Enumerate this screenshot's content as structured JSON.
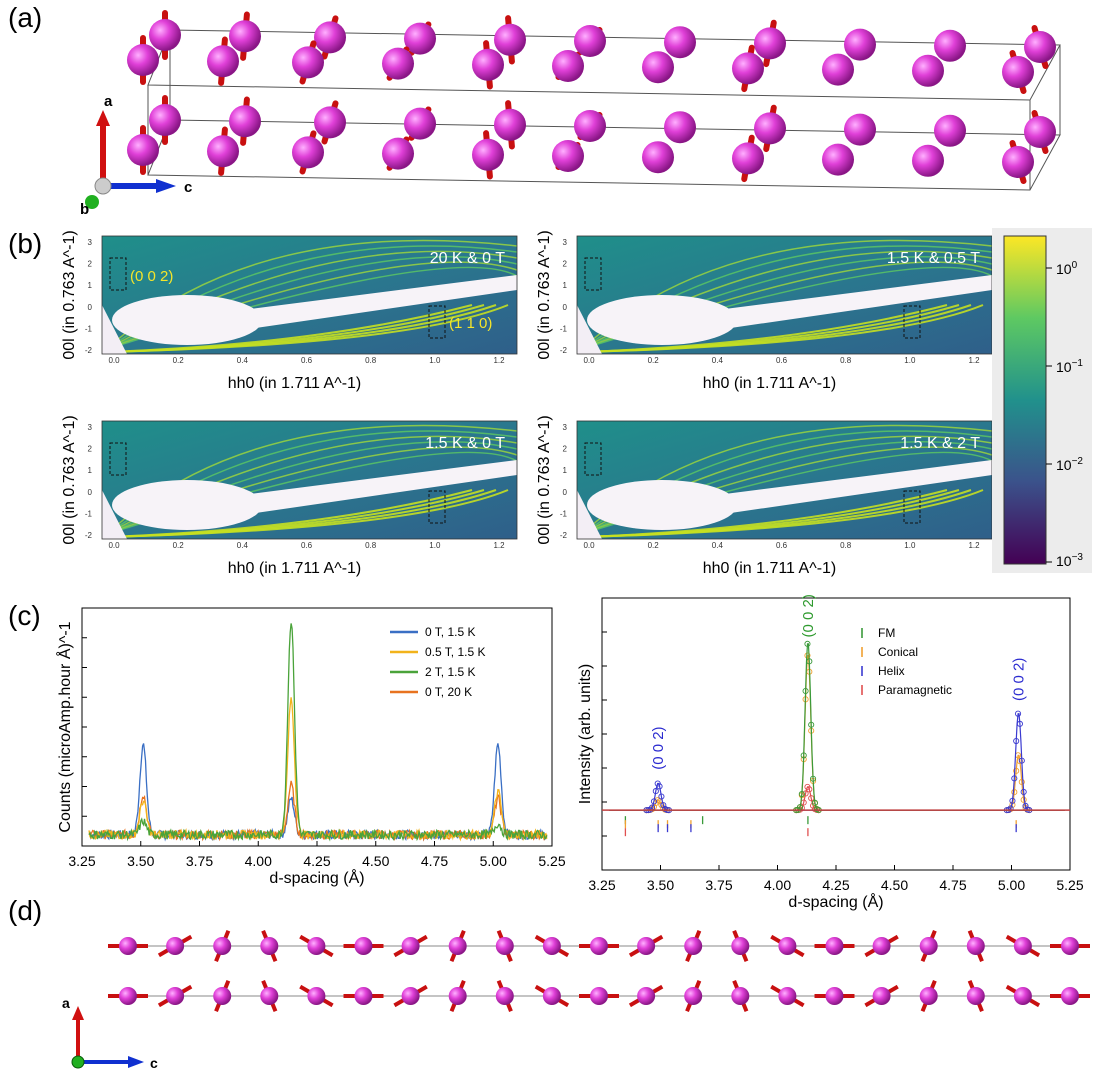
{
  "figure": {
    "panels": {
      "a": "(a)",
      "b": "(b)",
      "c": "(c)",
      "d": "(d)"
    },
    "axes_triad_a": {
      "a": "a",
      "b": "b",
      "c": "c"
    },
    "axes_triad_d": {
      "a": "a",
      "c": "c"
    }
  },
  "maps": {
    "ylabel": "00l (in 0.763 A^-1)",
    "xlabel": "hh0 (in 1.711 A^-1)",
    "x_ticks": [
      "0.0",
      "0.2",
      "0.4",
      "0.6",
      "0.8",
      "1.0",
      "1.2"
    ],
    "y_ticks": [
      "3",
      "2",
      "1",
      "0",
      "-1",
      "-2"
    ],
    "items": [
      {
        "condition": "20 K & 0 T",
        "peak_labels": [
          "(0 0 2)",
          "(1 1 0)"
        ]
      },
      {
        "condition": "1.5 K & 0.5 T",
        "peak_labels": []
      },
      {
        "condition": "1.5 K & 0 T",
        "peak_labels": []
      },
      {
        "condition": "1.5 K & 2 T",
        "peak_labels": []
      }
    ],
    "colorbar": {
      "labels": [
        "10^0",
        "10^-1",
        "10^-2",
        "10^-3"
      ],
      "colors": [
        "#440154",
        "#3b528b",
        "#21918c",
        "#5ec962",
        "#fde725"
      ],
      "scale": "log"
    }
  },
  "chart_data": [
    {
      "type": "line",
      "xlabel": "d-spacing (Å)",
      "ylabel": "Counts (microAmp.hour Å)^-1",
      "xlim": [
        3.25,
        5.25
      ],
      "x_ticks": [
        "3.25",
        "3.50",
        "3.75",
        "4.00",
        "4.25",
        "4.50",
        "4.75",
        "5.00",
        "5.25"
      ],
      "legend_position": "top-right",
      "series": [
        {
          "name": "0 T, 1.5 K",
          "color": "#3a6fc4",
          "peaks": [
            {
              "x": 3.51,
              "y": 0.4
            },
            {
              "x": 4.14,
              "y": 0.16
            },
            {
              "x": 5.02,
              "y": 0.4
            }
          ]
        },
        {
          "name": "0.5 T, 1.5 K",
          "color": "#f2b31b",
          "peaks": [
            {
              "x": 3.51,
              "y": 0.15
            },
            {
              "x": 4.14,
              "y": 0.6
            },
            {
              "x": 5.02,
              "y": 0.19
            }
          ]
        },
        {
          "name": "2 T, 1.5 K",
          "color": "#4aa33a",
          "peaks": [
            {
              "x": 3.51,
              "y": 0.06
            },
            {
              "x": 4.14,
              "y": 0.95
            },
            {
              "x": 5.02,
              "y": 0.05
            }
          ]
        },
        {
          "name": "0 T, 20 K",
          "color": "#e8731f",
          "peaks": [
            {
              "x": 3.51,
              "y": 0.18
            },
            {
              "x": 4.14,
              "y": 0.22
            },
            {
              "x": 5.02,
              "y": 0.16
            }
          ]
        }
      ],
      "baseline": 0.05
    },
    {
      "type": "line",
      "xlabel": "d-spacing (Å)",
      "ylabel": "Intensity (arb. units)",
      "xlim": [
        3.25,
        5.25
      ],
      "x_ticks": [
        "3.25",
        "3.50",
        "3.75",
        "4.00",
        "4.25",
        "4.50",
        "4.75",
        "5.00",
        "5.25"
      ],
      "legend_position": "top-right",
      "annotations": [
        {
          "text": "(0 0 2)",
          "x": 3.49,
          "color": "#2b2bd0"
        },
        {
          "text": "(0 0 2)",
          "x": 4.13,
          "color": "#2e9a2e"
        },
        {
          "text": "(0 0 2)",
          "x": 5.03,
          "color": "#2b2bd0"
        }
      ],
      "series": [
        {
          "name": "FM",
          "color": "#3a9a3a",
          "peaks": [
            {
              "x": 4.13,
              "y": 1.0
            }
          ],
          "ticks": [
            3.35,
            3.68,
            4.13
          ]
        },
        {
          "name": "Conical",
          "color": "#f0a030",
          "peaks": [
            {
              "x": 3.49,
              "y": 0.06
            },
            {
              "x": 4.13,
              "y": 0.93
            },
            {
              "x": 5.03,
              "y": 0.33
            }
          ],
          "ticks": [
            3.35,
            3.49,
            3.53,
            3.63,
            5.02
          ]
        },
        {
          "name": "Helix",
          "color": "#3a3ad0",
          "peaks": [
            {
              "x": 3.49,
              "y": 0.16
            },
            {
              "x": 5.03,
              "y": 0.58
            }
          ],
          "ticks": [
            3.49,
            3.53,
            3.63,
            5.02
          ]
        },
        {
          "name": "Paramagnetic",
          "color": "#e05050",
          "peaks": [
            {
              "x": 4.13,
              "y": 0.14
            }
          ],
          "ticks": [
            3.35,
            4.13
          ]
        }
      ]
    }
  ]
}
